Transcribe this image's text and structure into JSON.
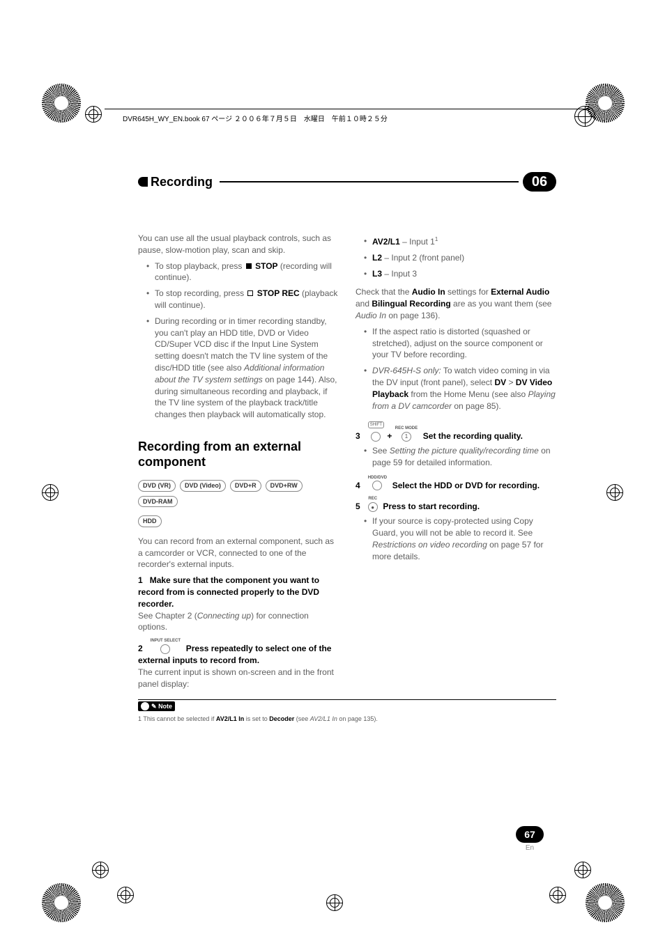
{
  "meta": {
    "header_text": "DVR645H_WY_EN.book 67 ページ ２００６年７月５日　水曜日　午前１０時２５分"
  },
  "chapter": {
    "title": "Recording",
    "number": "06"
  },
  "left": {
    "intro": "You can use all the usual playback controls, such as pause, slow-motion play, scan and skip.",
    "b1_pre": "To stop playback, press ",
    "b1_bold": "STOP",
    "b1_post": " (recording will continue).",
    "b2_pre": "To stop recording, press ",
    "b2_bold": "STOP REC",
    "b2_post": " (playback will continue).",
    "b3_a": "During recording or in timer recording standby, you can't play an HDD title, DVD or Video CD/Super VCD disc if the Input Line System setting doesn't match the TV line system of the disc/HDD title (see also ",
    "b3_i": "Additional information about the TV system settings",
    "b3_b": " on page 144). Also, during simultaneous recording and playback, if the TV line system of the playback track/title changes then playback will automatically stop.",
    "h2": "Recording from an external component",
    "badges": [
      "DVD (VR)",
      "DVD (Video)",
      "DVD+R",
      "DVD+RW",
      "DVD-RAM",
      "HDD"
    ],
    "ext_intro": "You can record from an external component, such as a camcorder or VCR, connected to one of the recorder's external inputs.",
    "s1_num": "1",
    "s1_title": "Make sure that the component you want to record from is connected properly to the DVD recorder.",
    "s1_body_a": "See Chapter 2 (",
    "s1_body_i": "Connecting up",
    "s1_body_b": ") for connection options.",
    "s2_num": "2",
    "s2_icon_label": "INPUT SELECT",
    "s2_title": "Press repeatedly to select one of the external inputs to record from.",
    "s2_body": "The current input is shown on-screen and in the front panel display:"
  },
  "right": {
    "i1_b": "AV2/L1",
    "i1_t": " – Input 1",
    "i1_sup": "1",
    "i2_b": "L2",
    "i2_t": " – Input 2 (front panel)",
    "i3_b": "L3",
    "i3_t": " – Input 3",
    "check_a": "Check that the ",
    "check_b1": "Audio In",
    "check_c": " settings for ",
    "check_b2": "External Audio",
    "check_d": " and ",
    "check_b3": "Bilingual Recording",
    "check_e": " are as you want them (see ",
    "check_i": "Audio In",
    "check_f": " on page 136).",
    "rb1": "If the aspect ratio is distorted (squashed or stretched), adjust on the source component or your TV before recording.",
    "rb2_i": "DVR-645H-S only:",
    "rb2_a": " To watch video coming in via the DV input (front panel), select ",
    "rb2_b1": "DV",
    "rb2_gt": " > ",
    "rb2_b2": "DV Video Playback",
    "rb2_c": " from the Home Menu (see also ",
    "rb2_i2": "Playing from a DV camcorder",
    "rb2_d": " on page 85).",
    "s3_num": "3",
    "s3_shift": "SHIFT",
    "s3_recmode": "REC MODE",
    "s3_one": "1",
    "s3_title": "Set the recording quality.",
    "s3_b_a": "See ",
    "s3_b_i": "Setting the picture quality/recording time",
    "s3_b_b": " on page 59 for detailed information.",
    "s4_num": "4",
    "s4_icon_label": "HDD/DVD",
    "s4_title": "Select the HDD or DVD for recording.",
    "s5_num": "5",
    "s5_icon_label": "REC",
    "s5_dot": "●",
    "s5_title": "Press to start recording.",
    "s5_b_a": "If your source is copy-protected using Copy Guard, you will not be able to record it. See ",
    "s5_b_i": "Restrictions on video recording",
    "s5_b_b": " on page 57 for more details."
  },
  "note": {
    "label": "Note",
    "fn_a": "1 This cannot be selected if ",
    "fn_b": "AV2/L1 In",
    "fn_c": " is set to ",
    "fn_b2": "Decoder",
    "fn_d": " (see ",
    "fn_i": "AV2/L1 In",
    "fn_e": " on page 135)."
  },
  "foot": {
    "page": "67",
    "lang": "En"
  }
}
